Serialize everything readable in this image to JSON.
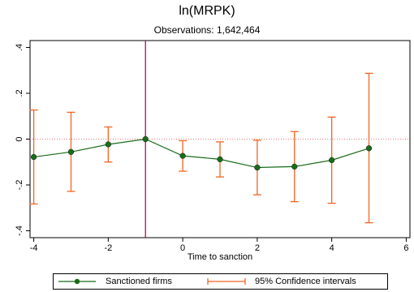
{
  "colors": {
    "series_line": "#1a6b1a",
    "series_marker": "#1a6b1a",
    "ci": "#f26522",
    "reference_line": "#a0145a",
    "zero_line": "#e87878"
  },
  "chart_data": {
    "type": "line",
    "title": "ln(MRPK)",
    "subtitle": "Observations: 1,642,464",
    "xlabel": "Time to sanction",
    "ylabel": "",
    "xlim": [
      -4.1,
      6.1
    ],
    "ylim": [
      -0.43,
      0.43
    ],
    "xticks": [
      -4,
      -2,
      0,
      2,
      4,
      6
    ],
    "xtick_labels": [
      "-4",
      "-2",
      "0",
      "2",
      "4",
      "6"
    ],
    "yticks": [
      -0.4,
      -0.2,
      0,
      0.2,
      0.4
    ],
    "ytick_labels": [
      "-.4",
      "-.2",
      "0",
      ".2",
      ".4"
    ],
    "vertical_reference_x": -1,
    "horizontal_reference_y": 0,
    "grid": false,
    "legend_position": "bottom",
    "series": [
      {
        "name": "Sanctioned firms",
        "x": [
          -4,
          -3,
          -2,
          -1,
          0,
          1,
          2,
          3,
          4,
          5
        ],
        "values": [
          -0.078,
          -0.056,
          -0.023,
          0.0,
          -0.073,
          -0.088,
          -0.124,
          -0.12,
          -0.092,
          -0.04
        ],
        "ci_low": [
          -0.283,
          -0.228,
          -0.1,
          0.0,
          -0.14,
          -0.165,
          -0.243,
          -0.273,
          -0.28,
          -0.365
        ],
        "ci_high": [
          0.127,
          0.117,
          0.053,
          0.0,
          -0.007,
          -0.012,
          -0.005,
          0.033,
          0.096,
          0.287
        ]
      }
    ],
    "legend": [
      "Sanctioned firms",
      "95% Confidence intervals"
    ]
  }
}
